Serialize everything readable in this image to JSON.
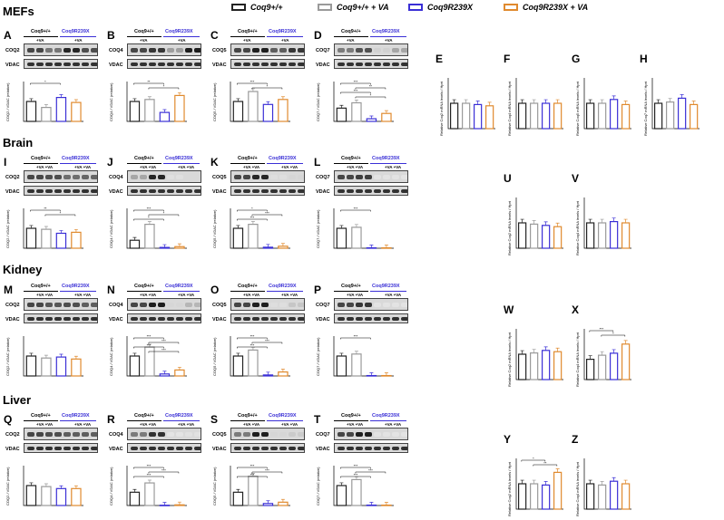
{
  "legend": {
    "items": [
      {
        "label": "Coq9+/+",
        "color": "#222222"
      },
      {
        "label": "Coq9+/+ + VA",
        "color": "#9a9a9a"
      },
      {
        "label": "Coq9R239X",
        "color": "#3a2fd6"
      },
      {
        "label": "Coq9R239X + VA",
        "color": "#e08a2e"
      }
    ]
  },
  "sections": [
    "MEFs",
    "Brain",
    "Kidney",
    "Liver"
  ],
  "wb_panels": [
    {
      "id": "A",
      "protein": "COQ2",
      "geno_wt": "Coq9+/+",
      "geno_mut": "Coq9R239X",
      "va": "+VA",
      "ylabel": "COQ2 / VDAC (relative)",
      "values": [
        1.0,
        0.7,
        1.2,
        0.95
      ],
      "ymax": 2,
      "sig": [
        "*"
      ]
    },
    {
      "id": "B",
      "protein": "COQ4",
      "geno_wt": "Coq9+/+",
      "geno_mut": "Coq9R239X",
      "va": "+VA",
      "ylabel": "COQ4 / VDAC (relative)",
      "values": [
        1.0,
        1.1,
        0.45,
        1.3
      ],
      "ymax": 2,
      "sig": [
        "**",
        "*"
      ]
    },
    {
      "id": "C",
      "protein": "COQ5",
      "geno_wt": "Coq9+/+",
      "geno_mut": "Coq9R239X",
      "va": "+VA",
      "ylabel": "COQ5 / VDAC (relative)",
      "values": [
        1.0,
        1.5,
        0.85,
        1.1
      ],
      "ymax": 2,
      "sig": [
        "***",
        "*"
      ]
    },
    {
      "id": "D",
      "protein": "COQ7",
      "geno_wt": "Coq9+/+",
      "geno_mut": "Coq9R239X",
      "va": "+VA",
      "vdac": "VDAC",
      "ylabel": "COQ7 / VDAC (relative)",
      "values": [
        1.0,
        1.4,
        0.2,
        0.6
      ],
      "ymax": 3,
      "sig": [
        "***",
        "**",
        "***",
        "*"
      ]
    },
    {
      "id": "I",
      "protein": "COQ2",
      "geno_wt": "Coq9+/+",
      "geno_mut": "Coq9R239X",
      "va": "+VA +VA",
      "ylabel": "COQ2 / VDAC (relative)",
      "values": [
        1.0,
        0.95,
        0.75,
        0.8
      ],
      "ymax": 2,
      "sig": [
        "**",
        "*"
      ]
    },
    {
      "id": "J",
      "protein": "COQ4",
      "geno_wt": "Coq9+/+",
      "geno_mut": "Coq9R239X",
      "va": "+VA +VA",
      "ylabel": "COQ4 / VDAC (relative)",
      "values": [
        1.0,
        3.0,
        0.1,
        0.2
      ],
      "ymax": 5,
      "sig": [
        "***",
        "*",
        "*"
      ]
    },
    {
      "id": "K",
      "protein": "COQ5",
      "geno_wt": "Coq9+/+",
      "geno_mut": "Coq9R239X",
      "va": "+VA +VA",
      "ylabel": "COQ5 / VDAC (relative)",
      "values": [
        1.0,
        1.2,
        0.05,
        0.1
      ],
      "ymax": 2,
      "sig": [
        "*",
        "***",
        "***"
      ]
    },
    {
      "id": "L",
      "protein": "COQ7",
      "geno_wt": "Coq9+/+",
      "geno_mut": "Coq9R239X",
      "va": "+VA +VA",
      "ylabel": "COQ7 / VDAC (relative)",
      "values": [
        1.0,
        1.05,
        0.02,
        0.02
      ],
      "ymax": 2,
      "sig": [
        "***"
      ]
    },
    {
      "id": "M",
      "protein": "COQ2",
      "geno_wt": "Coq9+/+",
      "geno_mut": "Coq9R239X",
      "va": "+VA +VA",
      "ylabel": "COQ2 / VDAC (relative)",
      "values": [
        1.0,
        0.9,
        0.95,
        0.85
      ],
      "ymax": 2,
      "sig": []
    },
    {
      "id": "N",
      "protein": "COQ4",
      "geno_wt": "Coq9+/+",
      "geno_mut": "Coq9R239X",
      "va": "+VA +VA",
      "ylabel": "COQ4 / VDAC (relative)",
      "values": [
        1.0,
        1.45,
        0.1,
        0.3
      ],
      "ymax": 2,
      "sig": [
        "***",
        "***",
        "***",
        "***"
      ]
    },
    {
      "id": "O",
      "protein": "COQ5",
      "geno_wt": "Coq9+/+",
      "geno_mut": "Coq9R239X",
      "va": "+VA +VA",
      "ylabel": "COQ5 / VDAC (relative)",
      "values": [
        1.0,
        1.3,
        0.05,
        0.2
      ],
      "ymax": 2,
      "sig": [
        "***",
        "***",
        "***"
      ]
    },
    {
      "id": "P",
      "protein": "COQ7",
      "geno_wt": "Coq9+/+",
      "geno_mut": "Coq9R239X",
      "va": "+VA +VA",
      "ylabel": "COQ7 / VDAC (relative)",
      "values": [
        1.0,
        1.1,
        0.02,
        0.02
      ],
      "ymax": 2,
      "sig": [
        "***"
      ]
    },
    {
      "id": "Q",
      "protein": "COQ2",
      "geno_wt": "Coq9+/+",
      "geno_mut": "Coq9R239X",
      "va": "+VA +VA",
      "ylabel": "COQ2 / VDAC (relative)",
      "values": [
        1.0,
        0.95,
        0.85,
        0.85
      ],
      "ymax": 2,
      "sig": []
    },
    {
      "id": "R",
      "protein": "COQ4",
      "geno_wt": "Coq9+/+",
      "geno_mut": "Coq9R239X",
      "va": "+VA +VA",
      "ylabel": "COQ4 / VDAC (relative)",
      "values": [
        1.0,
        1.7,
        0.02,
        0.05
      ],
      "ymax": 3,
      "sig": [
        "***",
        "***",
        "***"
      ]
    },
    {
      "id": "S",
      "protein": "COQ5",
      "geno_wt": "Coq9+/+",
      "geno_mut": "Coq9R239X",
      "va": "+VA +VA",
      "ylabel": "COQ5 / VDAC (relative)",
      "values": [
        1.0,
        2.2,
        0.15,
        0.25
      ],
      "ymax": 3,
      "sig": [
        "***",
        "***",
        "***"
      ]
    },
    {
      "id": "T",
      "protein": "COQ7",
      "geno_wt": "Coq9+/+",
      "geno_mut": "Coq9R239X",
      "va": "+VA +VA",
      "vdac": "VDAC",
      "ylabel": "COQ7 / VDAC (relative)",
      "values": [
        1.0,
        1.3,
        0.02,
        0.02
      ],
      "ymax": 2,
      "sig": [
        "***",
        "***",
        "***"
      ]
    }
  ],
  "mrna_panels": [
    {
      "id": "E",
      "ylabel": "Relative Coq2 mRNA levels / Hprt",
      "values": [
        1.0,
        1.0,
        0.95,
        0.9
      ],
      "ymax": 2,
      "sig": []
    },
    {
      "id": "F",
      "ylabel": "Relative Coq4 mRNA levels / Hprt",
      "values": [
        1.0,
        1.0,
        1.0,
        1.0
      ],
      "ymax": 2,
      "sig": []
    },
    {
      "id": "G",
      "ylabel": "Relative Coq5 mRNA levels / Hprt",
      "values": [
        1.0,
        1.0,
        1.15,
        0.95
      ],
      "ymax": 2,
      "sig": []
    },
    {
      "id": "H",
      "ylabel": "Relative Coq7 mRNA levels / Hprt",
      "values": [
        1.0,
        1.05,
        1.2,
        0.95
      ],
      "ymax": 2,
      "sig": []
    },
    {
      "id": "U",
      "ylabel": "Relative Coq2 mRNA levels / Hprt",
      "values": [
        1.0,
        0.95,
        0.9,
        0.85
      ],
      "ymax": 2,
      "sig": []
    },
    {
      "id": "V",
      "ylabel": "Relative Coq4 mRNA levels / Hprt",
      "values": [
        1.0,
        1.0,
        1.05,
        1.0
      ],
      "ymax": 2,
      "sig": []
    },
    {
      "id": "W",
      "ylabel": "Relative Coq2 mRNA levels / Hprt",
      "values": [
        1.0,
        1.05,
        1.15,
        1.1
      ],
      "ymax": 2,
      "sig": []
    },
    {
      "id": "X",
      "ylabel": "Relative Coq4 mRNA levels / Hprt",
      "values": [
        1.0,
        1.2,
        1.3,
        1.75
      ],
      "ymax": 2.5,
      "sig": [
        "***",
        "*"
      ]
    },
    {
      "id": "Y",
      "ylabel": "Relative Coq2 mRNA levels / Hprt",
      "values": [
        1.0,
        1.0,
        0.95,
        1.45
      ],
      "ymax": 2,
      "sig": [
        "*",
        "**"
      ]
    },
    {
      "id": "Z",
      "ylabel": "Relative Coq4 mRNA levels / Hprt",
      "values": [
        1.0,
        0.95,
        1.1,
        1.0
      ],
      "ymax": 2,
      "sig": []
    }
  ],
  "vdac_label": "VDAC"
}
